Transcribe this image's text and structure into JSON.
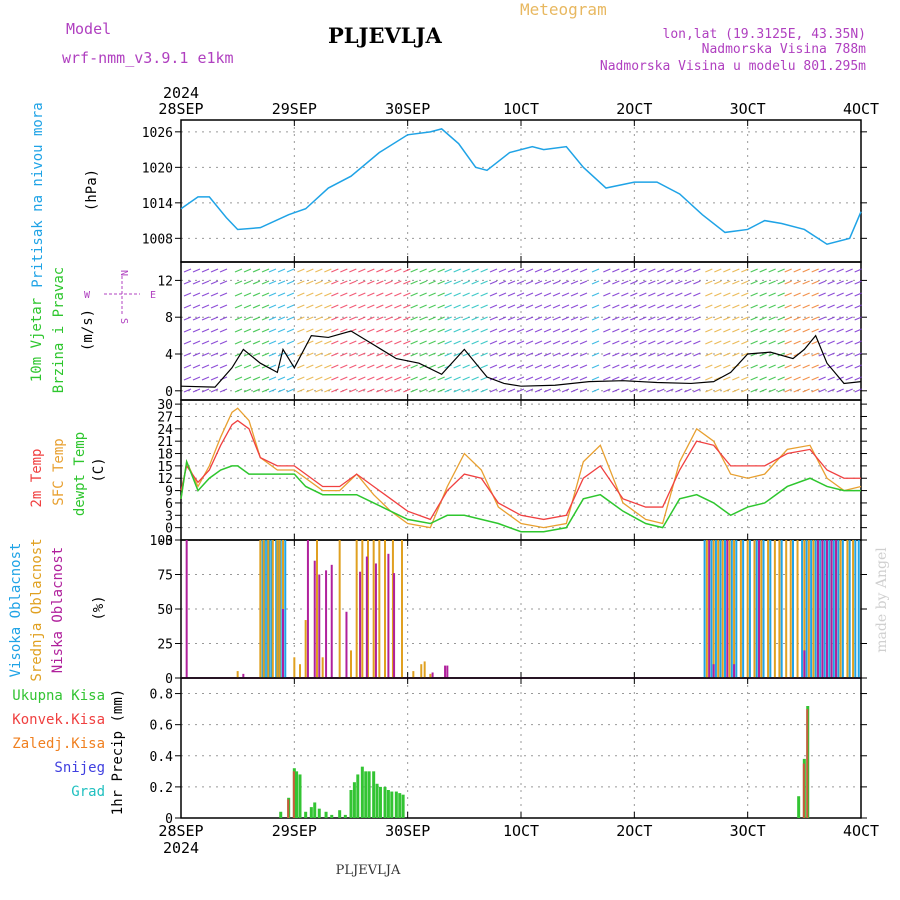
{
  "header": {
    "model_label": "Model",
    "model_name": "wrf-nmm_v3.9.1 e1km",
    "station": "PLJEVLJA",
    "product": "Meteogram",
    "coords": "lon,lat (19.3125E, 43.35N)",
    "elevation": "Nadmorska Visina 788m",
    "model_elevation": "Nadmorska Visina u modelu 801.295m",
    "footer_station": "PLJEVLJA",
    "watermark": "made by Angel"
  },
  "time_axis": {
    "year": "2024",
    "labels": [
      "28SEP",
      "29SEP",
      "30SEP",
      "1OCT",
      "2OCT",
      "3OCT",
      "4OCT"
    ]
  },
  "panel_labels": {
    "pressure": {
      "name": "Pritisak na nivou mora",
      "unit": "(hPa)"
    },
    "wind": {
      "name1": "10m Vjetar",
      "name2": "Brzina i Pravac",
      "unit": "(m/s)",
      "rose_n": "N",
      "rose_w": "W",
      "rose_e": "E",
      "rose_s": "S"
    },
    "temp": {
      "t2m": "2m Temp",
      "sfc": "SFC Temp",
      "dew": "dewpt Temp",
      "unit": "(C)"
    },
    "cloud": {
      "high": "Visoka Oblacnost",
      "mid": "Srednja Oblacnost",
      "low": "Niska Oblacnost",
      "unit": "(%)"
    },
    "precip": {
      "axis": "1hr Precip (mm)",
      "total": "Ukupna Kisa",
      "conv": "Konvek.Kisa",
      "frozen": "Zaledj.Kisa",
      "snow": "Snijeg",
      "grad": "Grad"
    }
  },
  "colors": {
    "pressure": "#1fa3e6",
    "t2m": "#f04040",
    "sfc": "#e8a030",
    "dew": "#2ec62e",
    "high_cloud": "#1fa3e6",
    "mid_cloud": "#e0a020",
    "low_cloud": "#b0209c",
    "precip_total": "#33c433",
    "precip_conv": "#f04040",
    "precip_frozen": "#f08020",
    "snow": "#4040e0",
    "grad": "#20c0c0",
    "model_text": "#b040c0",
    "meteogram": "#e8b860"
  },
  "chart_data": [
    {
      "type": "line",
      "panel": "pressure",
      "ylabel": "(hPa)",
      "ylim": [
        1004,
        1028
      ],
      "yticks": [
        1008,
        1014,
        1020,
        1026
      ],
      "x_days": [
        0,
        0.15,
        0.25,
        0.4,
        0.5,
        0.7,
        0.95,
        1.1,
        1.3,
        1.5,
        1.75,
        2.0,
        2.2,
        2.3,
        2.45,
        2.6,
        2.7,
        2.9,
        3.1,
        3.2,
        3.4,
        3.55,
        3.75,
        4.0,
        4.2,
        4.4,
        4.6,
        4.8,
        5.0,
        5.15,
        5.3,
        5.5,
        5.7,
        5.9,
        6.0
      ],
      "series": [
        {
          "name": "Pritisak na nivou mora",
          "values": [
            1013,
            1015,
            1015,
            1011.5,
            1009.5,
            1009.8,
            1012,
            1013,
            1016.5,
            1018.5,
            1022.5,
            1025.5,
            1026,
            1026.5,
            1024,
            1020,
            1019.5,
            1022.5,
            1023.5,
            1023,
            1023.5,
            1020,
            1016.5,
            1017.5,
            1017.5,
            1015.5,
            1012,
            1009,
            1009.5,
            1011,
            1010.5,
            1009.5,
            1007,
            1008,
            1012.5
          ]
        }
      ]
    },
    {
      "type": "line",
      "panel": "wind",
      "ylabel": "(m/s)",
      "ylim": [
        -1,
        14
      ],
      "yticks": [
        0,
        4,
        8,
        12
      ],
      "x_days": [
        0,
        0.3,
        0.45,
        0.55,
        0.7,
        0.85,
        0.9,
        1.0,
        1.15,
        1.3,
        1.5,
        1.7,
        1.9,
        2.1,
        2.3,
        2.5,
        2.7,
        2.85,
        3.0,
        3.3,
        3.6,
        3.9,
        4.2,
        4.5,
        4.7,
        4.85,
        5.0,
        5.2,
        5.4,
        5.5,
        5.6,
        5.7,
        5.85,
        6.0
      ],
      "series": [
        {
          "name": "Brzina i Pravac",
          "values": [
            0.5,
            0.4,
            2.5,
            4.5,
            3.0,
            2.0,
            4.5,
            2.5,
            6.0,
            5.8,
            6.5,
            5.0,
            3.5,
            3.0,
            1.8,
            4.5,
            1.5,
            0.8,
            0.5,
            0.6,
            1.0,
            1.1,
            0.9,
            0.8,
            1.0,
            2.0,
            4.0,
            4.2,
            3.5,
            4.5,
            6.0,
            3.0,
            0.8,
            1.0
          ]
        }
      ]
    },
    {
      "type": "line",
      "panel": "temperature",
      "ylabel": "(C)",
      "ylim": [
        -3,
        31
      ],
      "yticks": [
        -3,
        0,
        3,
        6,
        9,
        12,
        15,
        18,
        21,
        24,
        27,
        30
      ],
      "x_days": [
        0,
        0.05,
        0.15,
        0.25,
        0.35,
        0.45,
        0.5,
        0.6,
        0.7,
        0.85,
        1.0,
        1.1,
        1.25,
        1.4,
        1.55,
        1.7,
        1.85,
        2.0,
        2.2,
        2.35,
        2.5,
        2.65,
        2.8,
        3.0,
        3.2,
        3.4,
        3.55,
        3.7,
        3.9,
        4.1,
        4.25,
        4.4,
        4.55,
        4.7,
        4.85,
        5.0,
        5.15,
        5.35,
        5.55,
        5.7,
        5.85,
        6.0
      ],
      "series": [
        {
          "name": "2m Temp",
          "values": [
            9,
            15,
            11,
            14,
            20,
            25,
            26,
            24,
            17,
            15,
            15,
            13,
            10,
            10,
            13,
            10,
            7,
            4,
            2,
            9,
            13,
            12,
            6,
            3,
            2,
            3,
            12,
            15,
            7,
            5,
            5,
            14,
            21,
            20,
            15,
            15,
            15,
            18,
            19,
            14,
            12,
            12
          ]
        },
        {
          "name": "SFC Temp",
          "values": [
            7,
            16,
            10,
            15,
            22,
            28,
            29,
            26,
            17,
            14,
            14,
            12,
            9,
            9,
            13,
            8,
            4,
            1,
            0,
            10,
            18,
            14,
            5,
            1,
            0,
            1,
            16,
            20,
            6,
            2,
            1,
            16,
            24,
            21,
            13,
            12,
            13,
            19,
            20,
            12,
            9,
            10
          ]
        },
        {
          "name": "dewpt Temp",
          "values": [
            7,
            16,
            9,
            12,
            14,
            15,
            15,
            13,
            13,
            13,
            13,
            10,
            8,
            8,
            8,
            6,
            4,
            2,
            1,
            3,
            3,
            2,
            1,
            -1,
            -1,
            0,
            7,
            8,
            4,
            1,
            0,
            7,
            8,
            6,
            3,
            5,
            6,
            10,
            12,
            10,
            9,
            9
          ]
        }
      ]
    },
    {
      "type": "bar",
      "panel": "cloud",
      "ylabel": "(%)",
      "ylim": [
        0,
        100
      ],
      "yticks": [
        0,
        25,
        50,
        75,
        100
      ],
      "series": [
        {
          "name": "Visoka Oblacnost",
          "x_days": [
            0.72,
            0.74,
            0.76,
            0.78,
            0.8,
            0.84,
            0.86,
            0.88,
            0.92,
            4.62,
            4.68,
            4.72,
            4.76,
            4.8,
            4.86,
            4.9,
            4.96,
            5.02,
            5.08,
            5.14,
            5.2,
            5.3,
            5.4,
            5.48,
            5.52,
            5.56,
            5.6,
            5.64,
            5.68,
            5.72,
            5.76,
            5.8,
            5.84,
            5.9,
            5.95,
            5.98
          ],
          "values": [
            100,
            100,
            100,
            100,
            100,
            100,
            100,
            100,
            100,
            100,
            100,
            100,
            100,
            100,
            100,
            100,
            100,
            100,
            100,
            100,
            100,
            100,
            100,
            100,
            100,
            100,
            100,
            100,
            100,
            100,
            100,
            100,
            100,
            100,
            100,
            100
          ]
        },
        {
          "name": "Srednja Oblacnost",
          "x_days": [
            0.5,
            0.7,
            0.73,
            0.77,
            0.81,
            0.85,
            0.87,
            0.9,
            1.0,
            1.05,
            1.1,
            1.2,
            1.25,
            1.4,
            1.5,
            1.55,
            1.6,
            1.65,
            1.7,
            1.75,
            1.8,
            1.87,
            1.95,
            2.05,
            2.12,
            2.15,
            2.2,
            4.64,
            4.7,
            4.74,
            4.78,
            4.84,
            4.88,
            4.94,
            5.0,
            5.06,
            5.12,
            5.18,
            5.24,
            5.28,
            5.34,
            5.38,
            5.44,
            5.5,
            5.54,
            5.58,
            5.62,
            5.66,
            5.7,
            5.74,
            5.78,
            5.82,
            5.88,
            5.93
          ],
          "values": [
            5,
            100,
            100,
            100,
            100,
            100,
            100,
            100,
            15,
            10,
            42,
            100,
            15,
            100,
            20,
            100,
            100,
            100,
            100,
            100,
            100,
            100,
            100,
            5,
            10,
            12,
            3,
            100,
            100,
            100,
            100,
            100,
            100,
            100,
            100,
            100,
            100,
            100,
            100,
            100,
            100,
            100,
            100,
            100,
            100,
            100,
            100,
            100,
            100,
            100,
            100,
            100,
            100,
            100
          ]
        },
        {
          "name": "Niska Oblacnost",
          "x_days": [
            0.05,
            0.55,
            0.9,
            1.12,
            1.18,
            1.22,
            1.28,
            1.33,
            1.46,
            1.58,
            1.64,
            1.72,
            1.83,
            1.88,
            2.22,
            2.33,
            2.35,
            4.66,
            4.7,
            4.82,
            4.88,
            5.1,
            5.5,
            5.62,
            5.66,
            5.7,
            5.74,
            5.78
          ],
          "values": [
            100,
            3,
            50,
            100,
            85,
            75,
            78,
            82,
            48,
            77,
            88,
            83,
            90,
            76,
            4,
            9,
            9,
            100,
            10,
            100,
            10,
            100,
            20,
            100,
            100,
            100,
            100,
            100
          ]
        }
      ]
    },
    {
      "type": "bar",
      "panel": "precip",
      "ylabel": "1hr Precip (mm)",
      "ylim": [
        0,
        0.9
      ],
      "yticks": [
        0,
        0.2,
        0.4,
        0.6,
        0.8
      ],
      "series": [
        {
          "name": "Ukupna Kisa",
          "x_days": [
            0.88,
            0.95,
            1.0,
            1.02,
            1.05,
            1.1,
            1.15,
            1.18,
            1.22,
            1.28,
            1.33,
            1.4,
            1.45,
            1.5,
            1.53,
            1.56,
            1.6,
            1.63,
            1.66,
            1.7,
            1.73,
            1.76,
            1.8,
            1.83,
            1.86,
            1.9,
            1.93,
            1.96,
            5.45,
            5.5,
            5.53
          ],
          "values": [
            0.04,
            0.13,
            0.32,
            0.3,
            0.28,
            0.04,
            0.07,
            0.1,
            0.06,
            0.04,
            0.02,
            0.05,
            0.02,
            0.18,
            0.23,
            0.28,
            0.33,
            0.3,
            0.3,
            0.3,
            0.22,
            0.2,
            0.2,
            0.18,
            0.17,
            0.17,
            0.16,
            0.15,
            0.14,
            0.38,
            0.72
          ]
        },
        {
          "name": "Konvek.Kisa",
          "x_days": [
            0.95,
            1.0,
            5.5,
            5.53
          ],
          "values": [
            0.12,
            0.3,
            0.35,
            0.7
          ]
        }
      ]
    }
  ]
}
